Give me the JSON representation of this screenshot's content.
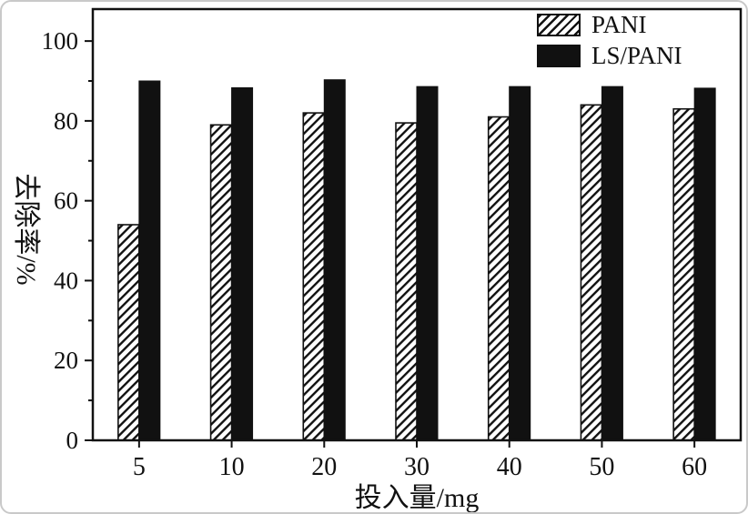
{
  "figure": {
    "background": "#ffffff",
    "frame_color": "#111111",
    "bar_fill": "#111111"
  },
  "chart_data": {
    "type": "bar",
    "title": "",
    "xlabel": "投入量/mg",
    "ylabel": "去除率/%",
    "categories": [
      "5",
      "10",
      "20",
      "30",
      "40",
      "50",
      "60"
    ],
    "series": [
      {
        "name": "PANI",
        "style": "hatched",
        "values": [
          54,
          79,
          82,
          79.5,
          81,
          84,
          83
        ]
      },
      {
        "name": "LS/PANI",
        "style": "solid",
        "values": [
          90,
          88.3,
          90.3,
          88.6,
          88.6,
          88.6,
          88.2
        ]
      }
    ],
    "ylim": [
      0,
      108
    ],
    "yticks_major": [
      0,
      20,
      40,
      60,
      80,
      100
    ],
    "yticks_minor": [
      10,
      30,
      50,
      70,
      90
    ],
    "legend_position": "top-right",
    "grid": false
  }
}
